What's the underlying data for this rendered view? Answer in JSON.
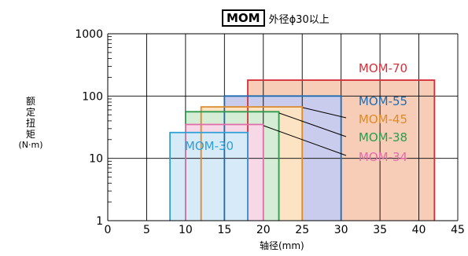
{
  "title": {
    "boxed": "MOM",
    "subtitle": "外径ϕ30以上"
  },
  "ylabel": {
    "chars": [
      "额",
      "定",
      "扭",
      "矩"
    ],
    "unit": "(N·m)"
  },
  "xlabel": "轴径(mm)",
  "chart_data": {
    "type": "area",
    "x_axis": {
      "label": "轴径(mm)",
      "range": [
        0,
        45
      ],
      "ticks": [
        0,
        5,
        10,
        15,
        20,
        25,
        30,
        35,
        40,
        45
      ]
    },
    "y_axis": {
      "label": "额定扭矩(N·m)",
      "scale": "log",
      "range": [
        1,
        1000
      ],
      "ticks": [
        1,
        10,
        100,
        1000
      ]
    },
    "grid": true,
    "series": [
      {
        "name": "MOM-70",
        "shaft_min": 18,
        "shaft_max": 42,
        "rated_torque": 180,
        "color": "#d3323c",
        "fill": "#f8cdb8"
      },
      {
        "name": "MOM-55",
        "shaft_min": 15,
        "shaft_max": 30,
        "rated_torque": 100,
        "color": "#1e6bb0",
        "fill": "#c9ccec"
      },
      {
        "name": "MOM-45",
        "shaft_min": 12,
        "shaft_max": 25,
        "rated_torque": 67,
        "color": "#dc8a2a",
        "fill": "#fbe3c4"
      },
      {
        "name": "MOM-38",
        "shaft_min": 10,
        "shaft_max": 22,
        "rated_torque": 56,
        "color": "#2e9a4e",
        "fill": "#d5edd5"
      },
      {
        "name": "MOM-34",
        "shaft_min": 10,
        "shaft_max": 20,
        "rated_torque": 35,
        "color": "#e06ca8",
        "fill": "#f6d8e6"
      },
      {
        "name": "MOM-30",
        "shaft_min": 8,
        "shaft_max": 18,
        "rated_torque": 26,
        "color": "#2da0d8",
        "fill": "#d6eaf8"
      }
    ]
  }
}
